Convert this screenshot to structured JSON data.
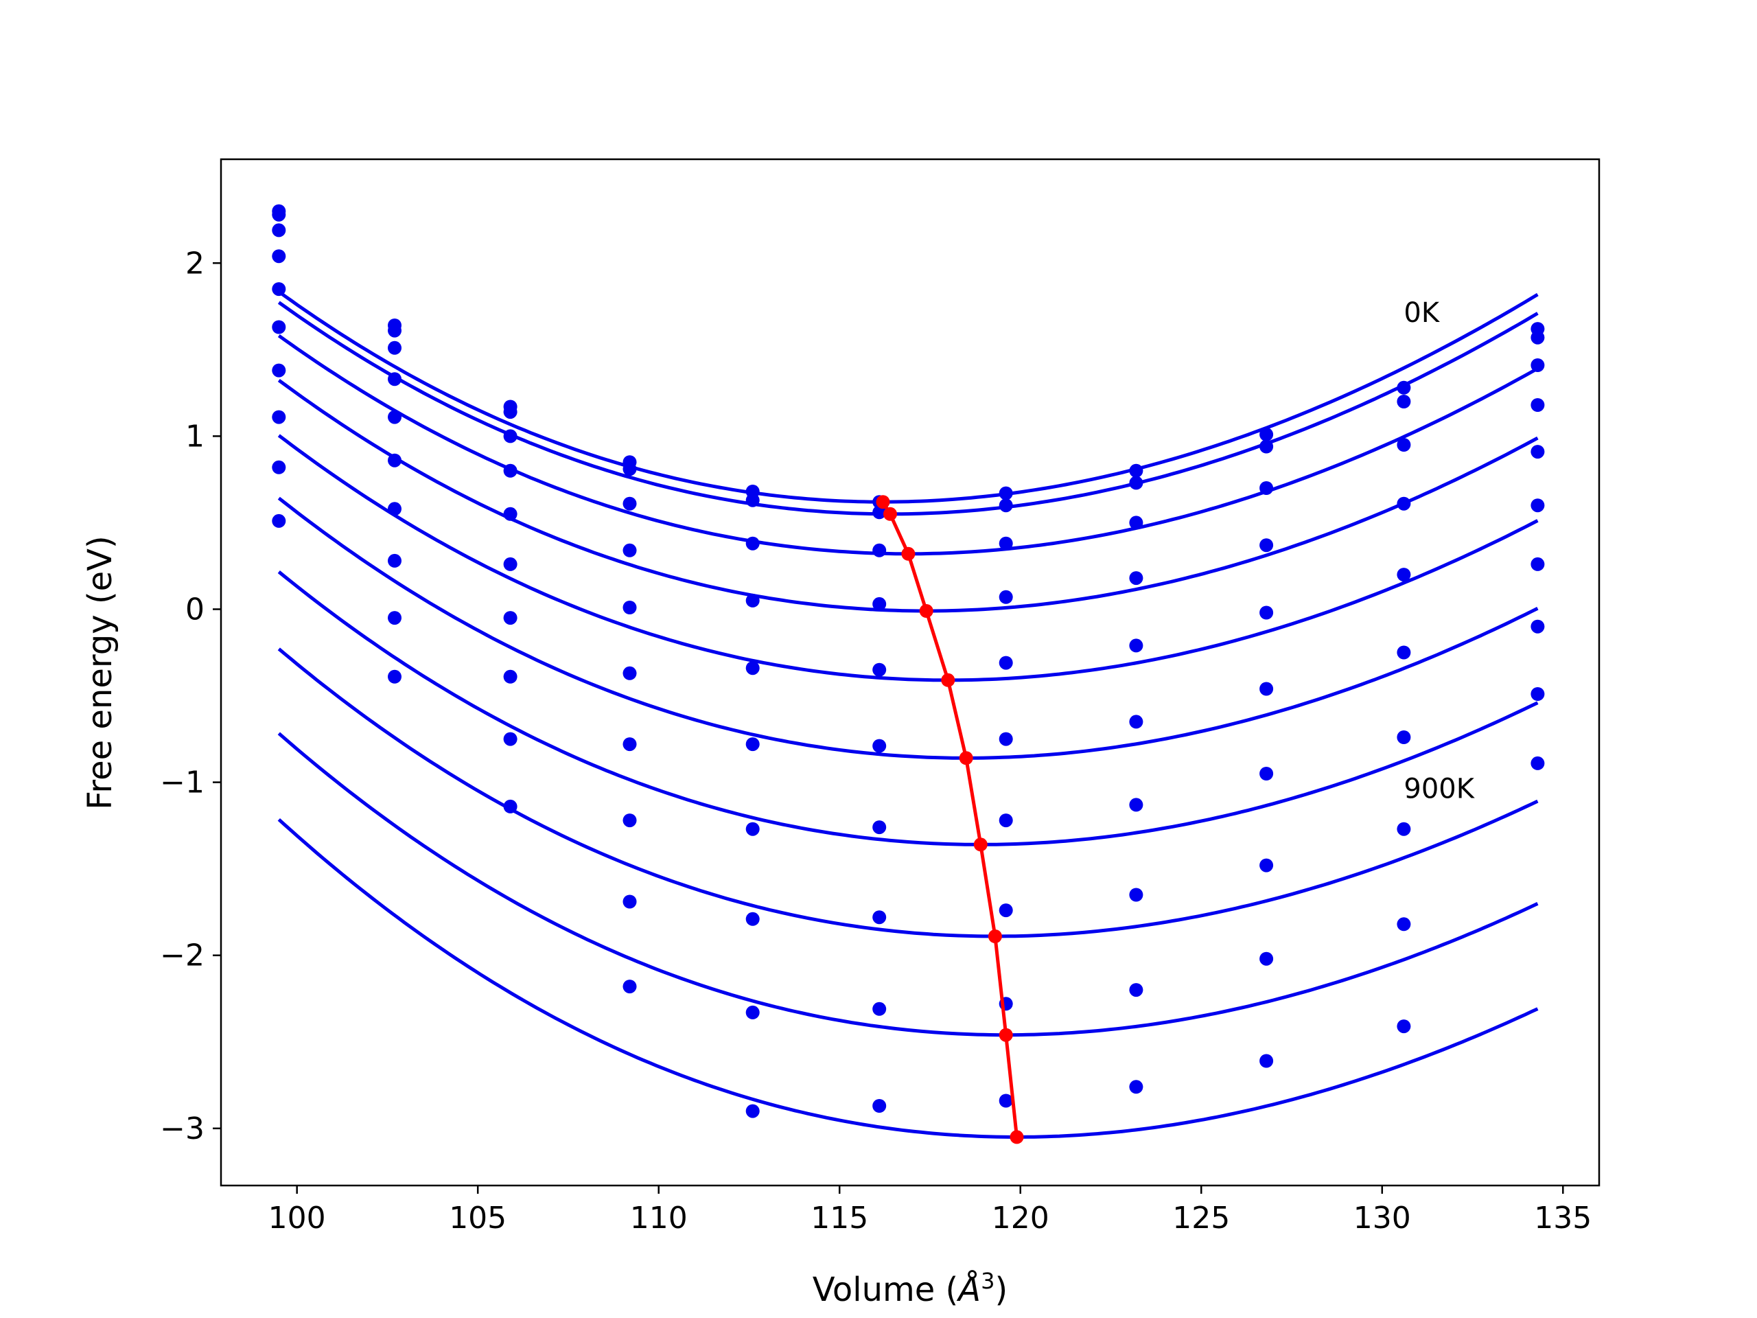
{
  "chart_data": {
    "type": "line",
    "xlabel_prefix": "Volume (",
    "xlabel_symbol": "Å",
    "xlabel_exp": "3",
    "xlabel_suffix": ")",
    "ylabel": "Free energy (eV)",
    "xlim": [
      97.9,
      136.0
    ],
    "ylim": [
      -3.33,
      2.6
    ],
    "x_ticks": [
      100,
      105,
      110,
      115,
      120,
      125,
      130,
      135
    ],
    "y_ticks": [
      -3,
      -2,
      -1,
      0,
      1,
      2
    ],
    "x_tick_labels": [
      "100",
      "105",
      "110",
      "115",
      "120",
      "125",
      "130",
      "135"
    ],
    "y_tick_labels": [
      "−3",
      "−2",
      "−1",
      "0",
      "1",
      "2"
    ],
    "grid": false,
    "curve_color": "#0000ee",
    "min_line_color": "#ff0000",
    "annotations": [
      {
        "text": "0K",
        "x": 130.6,
        "y": 1.66
      },
      {
        "text": "900K",
        "x": 130.6,
        "y": -1.09
      }
    ],
    "x_points": [
      99.5,
      102.7,
      105.9,
      109.2,
      112.6,
      116.1,
      119.6,
      123.2,
      126.8,
      130.6,
      134.3
    ],
    "series": [
      {
        "minV": 116.2,
        "minE": 0.62,
        "k": 0.00402,
        "c": 2e-05,
        "points": [
          2.3,
          1.64,
          1.17,
          0.85,
          0.68,
          0.62,
          0.67,
          0.8,
          1.01,
          1.28,
          1.62
        ]
      },
      {
        "minV": 116.4,
        "minE": 0.55,
        "k": 0.00396,
        "c": 1.9e-05,
        "points": [
          2.28,
          1.61,
          1.14,
          0.81,
          0.63,
          0.56,
          0.6,
          0.73,
          0.94,
          1.2,
          1.57
        ]
      },
      {
        "minV": 116.9,
        "minE": 0.32,
        "k": 0.00385,
        "c": 1.8e-05,
        "points": [
          2.19,
          1.51,
          1.0,
          0.61,
          0.38,
          0.34,
          0.38,
          0.5,
          0.7,
          0.95,
          1.41
        ]
      },
      {
        "minV": 117.4,
        "minE": -0.01,
        "k": 0.00382,
        "c": 1.9e-05,
        "points": [
          2.04,
          1.33,
          0.8,
          0.34,
          0.05,
          0.03,
          0.07,
          0.18,
          0.37,
          0.61,
          1.18
        ]
      },
      {
        "minV": 118.0,
        "minE": -0.41,
        "k": 0.00378,
        "c": 1.9e-05,
        "points": [
          1.85,
          1.11,
          0.55,
          0.01,
          -0.34,
          -0.35,
          -0.31,
          -0.21,
          -0.02,
          0.2,
          0.91
        ]
      },
      {
        "minV": 118.5,
        "minE": -0.86,
        "k": 0.00378,
        "c": 2e-05,
        "points": [
          1.63,
          0.86,
          0.26,
          -0.37,
          -0.78,
          -0.79,
          -0.75,
          -0.65,
          -0.46,
          -0.25,
          0.6
        ]
      },
      {
        "minV": 118.9,
        "minE": -1.36,
        "k": 0.00378,
        "c": 2.1e-05,
        "points": [
          1.38,
          0.58,
          -0.05,
          -0.78,
          -1.27,
          -1.26,
          -1.22,
          -1.13,
          -0.95,
          -0.74,
          0.26
        ]
      },
      {
        "minV": 119.3,
        "minE": -1.89,
        "k": 0.0038,
        "c": 2.2e-05,
        "points": [
          1.11,
          0.28,
          -0.39,
          -1.22,
          -1.79,
          -1.78,
          -1.74,
          -1.65,
          -1.48,
          -1.27,
          -0.1
        ]
      },
      {
        "minV": 119.6,
        "minE": -2.46,
        "k": 0.00385,
        "c": 2.3e-05,
        "points": [
          0.82,
          -0.05,
          -0.75,
          -1.69,
          -2.33,
          -2.31,
          -2.28,
          -2.2,
          -2.02,
          -1.82,
          -0.49
        ]
      },
      {
        "minV": 119.9,
        "minE": -3.05,
        "k": 0.00392,
        "c": 2.4e-05,
        "points": [
          0.51,
          -0.39,
          -1.14,
          -2.18,
          -2.9,
          -2.87,
          -2.84,
          -2.76,
          -2.61,
          -2.41,
          -0.89
        ]
      }
    ]
  }
}
